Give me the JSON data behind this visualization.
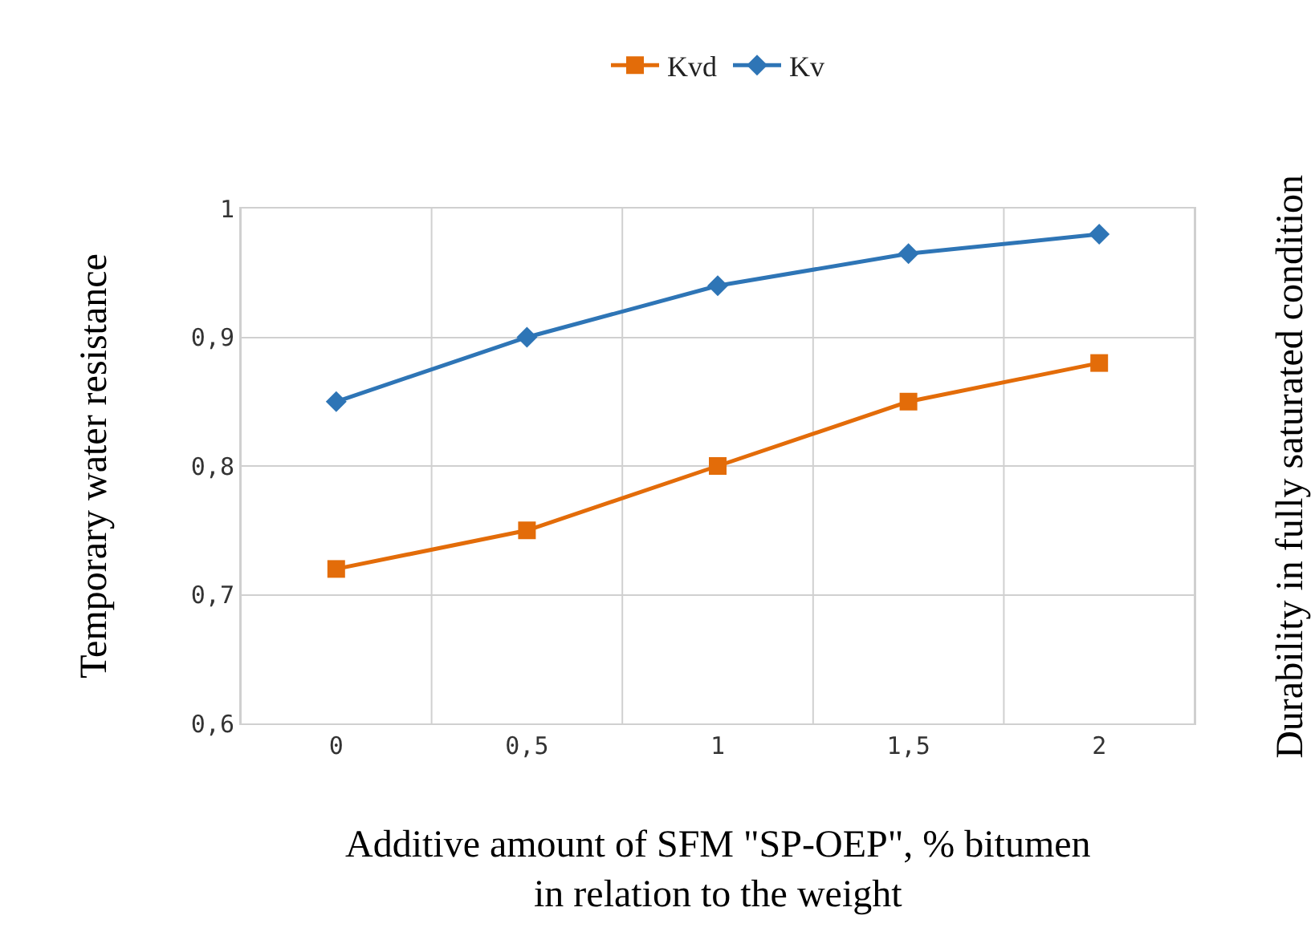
{
  "chart_data": {
    "type": "line",
    "xlabel": "Additive amount of SFM \"SP-OEP\", % bitumen in relation to the weight",
    "ylabel": "Temporary water resistance",
    "y2label": "Durability in fully saturated condition",
    "categories": [
      "0",
      "0,5",
      "1",
      "1,5",
      "2"
    ],
    "series": [
      {
        "name": "Kvd",
        "color": "#e36c09",
        "marker": "square",
        "values": [
          0.72,
          0.75,
          0.8,
          0.85,
          0.88
        ]
      },
      {
        "name": "Kv",
        "color": "#2e75b6",
        "marker": "diamond",
        "values": [
          0.85,
          0.9,
          0.94,
          0.965,
          0.98
        ]
      }
    ],
    "ylim": [
      0.6,
      1.0
    ],
    "yticks": [
      {
        "value": 0.6,
        "label": "0,6"
      },
      {
        "value": 0.7,
        "label": "0,7"
      },
      {
        "value": 0.8,
        "label": "0,8"
      },
      {
        "value": 0.9,
        "label": "0,9"
      },
      {
        "value": 1.0,
        "label": "1"
      }
    ],
    "grid": true,
    "legend": "top",
    "line_style": "solid"
  }
}
